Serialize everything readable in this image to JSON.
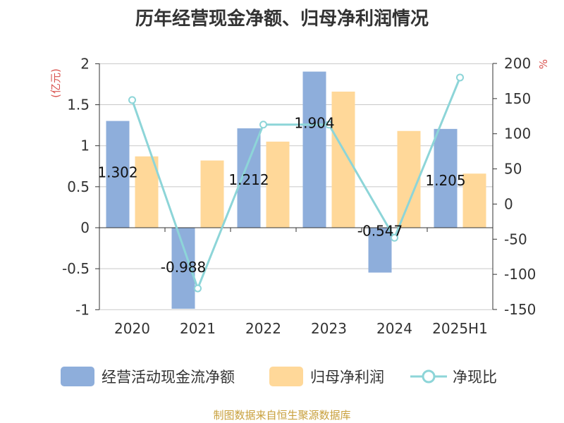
{
  "title": "历年经营现金净额、归母净利润情况",
  "source": "制图数据来自恒生聚源数据库",
  "colors": {
    "cash": "#8eaedb",
    "profit": "#ffd899",
    "ratio": "#8dd5d8",
    "grid": "#c8c8c8",
    "axis": "#333333",
    "unit": "#d9534f"
  },
  "chart_data": {
    "type": "bar",
    "title": "历年经营现金净额、归母净利润情况",
    "categories": [
      "2020",
      "2021",
      "2022",
      "2023",
      "2024",
      "2025H1"
    ],
    "y_left": {
      "label": "(亿元)",
      "min": -1,
      "max": 2,
      "ticks": [
        2,
        1.5,
        1,
        0.5,
        0,
        -0.5,
        -1
      ],
      "tick_labels": [
        "2",
        "1.5",
        "1",
        "0.5",
        "0",
        "-0.5",
        "-1"
      ]
    },
    "y_right": {
      "label": "%",
      "min": -150,
      "max": 200,
      "ticks": [
        200,
        150,
        100,
        50,
        0,
        -50,
        -100,
        -150
      ],
      "tick_labels": [
        "200",
        "150",
        "100",
        "50",
        "0",
        "-50",
        "-100",
        "-150"
      ]
    },
    "series": [
      {
        "name": "经营活动现金流净额",
        "type": "bar",
        "axis": "left",
        "values": [
          1.302,
          -0.988,
          1.212,
          1.904,
          -0.547,
          1.205
        ],
        "labels": [
          "1.302",
          "-0.988",
          "1.212",
          "1.904",
          "-0.547",
          "1.205"
        ]
      },
      {
        "name": "归母净利润",
        "type": "bar",
        "axis": "left",
        "values": [
          0.87,
          0.82,
          1.05,
          1.66,
          1.18,
          0.66
        ]
      },
      {
        "name": "净现比",
        "type": "line",
        "axis": "right",
        "values": [
          148,
          -120,
          113,
          113,
          -48,
          180
        ]
      }
    ],
    "legend_position": "bottom",
    "grid": true
  }
}
